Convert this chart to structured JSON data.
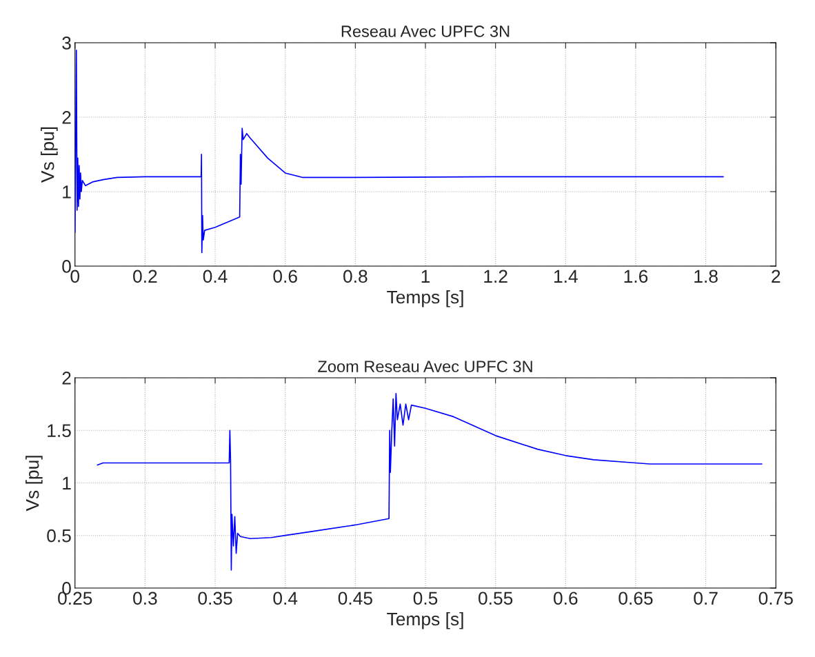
{
  "chart_data": [
    {
      "type": "line",
      "title": "Reseau Avec UPFC 3N",
      "xlabel": "Temps [s]",
      "ylabel": "Vs [pu]",
      "xlim": [
        0,
        2
      ],
      "ylim": [
        0,
        3
      ],
      "xticks": [
        0,
        0.2,
        0.4,
        0.6,
        0.8,
        1,
        1.2,
        1.4,
        1.6,
        1.8,
        2
      ],
      "yticks": [
        0,
        1,
        2,
        3
      ],
      "grid": true,
      "legend": false,
      "series": [
        {
          "color": "#0000ff",
          "x": [
            0,
            0.004,
            0.006,
            0.008,
            0.01,
            0.012,
            0.014,
            0.016,
            0.018,
            0.021,
            0.03,
            0.05,
            0.08,
            0.12,
            0.2,
            0.36,
            0.361,
            0.362,
            0.364,
            0.366,
            0.37,
            0.4,
            0.47,
            0.472,
            0.474,
            0.477,
            0.48,
            0.49,
            0.5,
            0.55,
            0.6,
            0.65,
            0.8,
            1.2,
            1.85
          ],
          "values": [
            0.45,
            2.9,
            0.75,
            1.45,
            0.8,
            1.35,
            0.9,
            1.25,
            1.0,
            1.15,
            1.08,
            1.13,
            1.16,
            1.19,
            1.2,
            1.2,
            1.5,
            0.18,
            0.68,
            0.35,
            0.48,
            0.52,
            0.66,
            1.5,
            1.1,
            1.85,
            1.7,
            1.78,
            1.72,
            1.45,
            1.25,
            1.19,
            1.19,
            1.2,
            1.2
          ]
        }
      ]
    },
    {
      "type": "line",
      "title": "Zoom Reseau Avec UPFC 3N",
      "xlabel": "Temps [s]",
      "ylabel": "Vs [pu]",
      "xlim": [
        0.25,
        0.75
      ],
      "ylim": [
        0,
        2
      ],
      "xticks": [
        0.25,
        0.3,
        0.35,
        0.4,
        0.45,
        0.5,
        0.55,
        0.6,
        0.65,
        0.7,
        0.75
      ],
      "yticks": [
        0,
        0.5,
        1,
        1.5,
        2
      ],
      "grid": true,
      "legend": false,
      "series": [
        {
          "color": "#0000ff",
          "x": [
            0.266,
            0.27,
            0.3,
            0.36,
            0.3605,
            0.361,
            0.3615,
            0.362,
            0.363,
            0.364,
            0.365,
            0.366,
            0.368,
            0.375,
            0.39,
            0.4,
            0.42,
            0.45,
            0.474,
            0.4745,
            0.475,
            0.476,
            0.477,
            0.478,
            0.479,
            0.48,
            0.482,
            0.484,
            0.486,
            0.488,
            0.49,
            0.5,
            0.52,
            0.55,
            0.58,
            0.6,
            0.62,
            0.65,
            0.66,
            0.74
          ],
          "values": [
            1.17,
            1.19,
            1.19,
            1.19,
            1.5,
            1.2,
            0.17,
            0.7,
            0.4,
            0.68,
            0.33,
            0.52,
            0.49,
            0.47,
            0.48,
            0.5,
            0.54,
            0.6,
            0.66,
            1.5,
            1.1,
            1.5,
            1.8,
            1.35,
            1.85,
            1.6,
            1.75,
            1.55,
            1.75,
            1.6,
            1.74,
            1.71,
            1.63,
            1.45,
            1.32,
            1.26,
            1.22,
            1.19,
            1.18,
            1.18
          ]
        }
      ]
    }
  ]
}
